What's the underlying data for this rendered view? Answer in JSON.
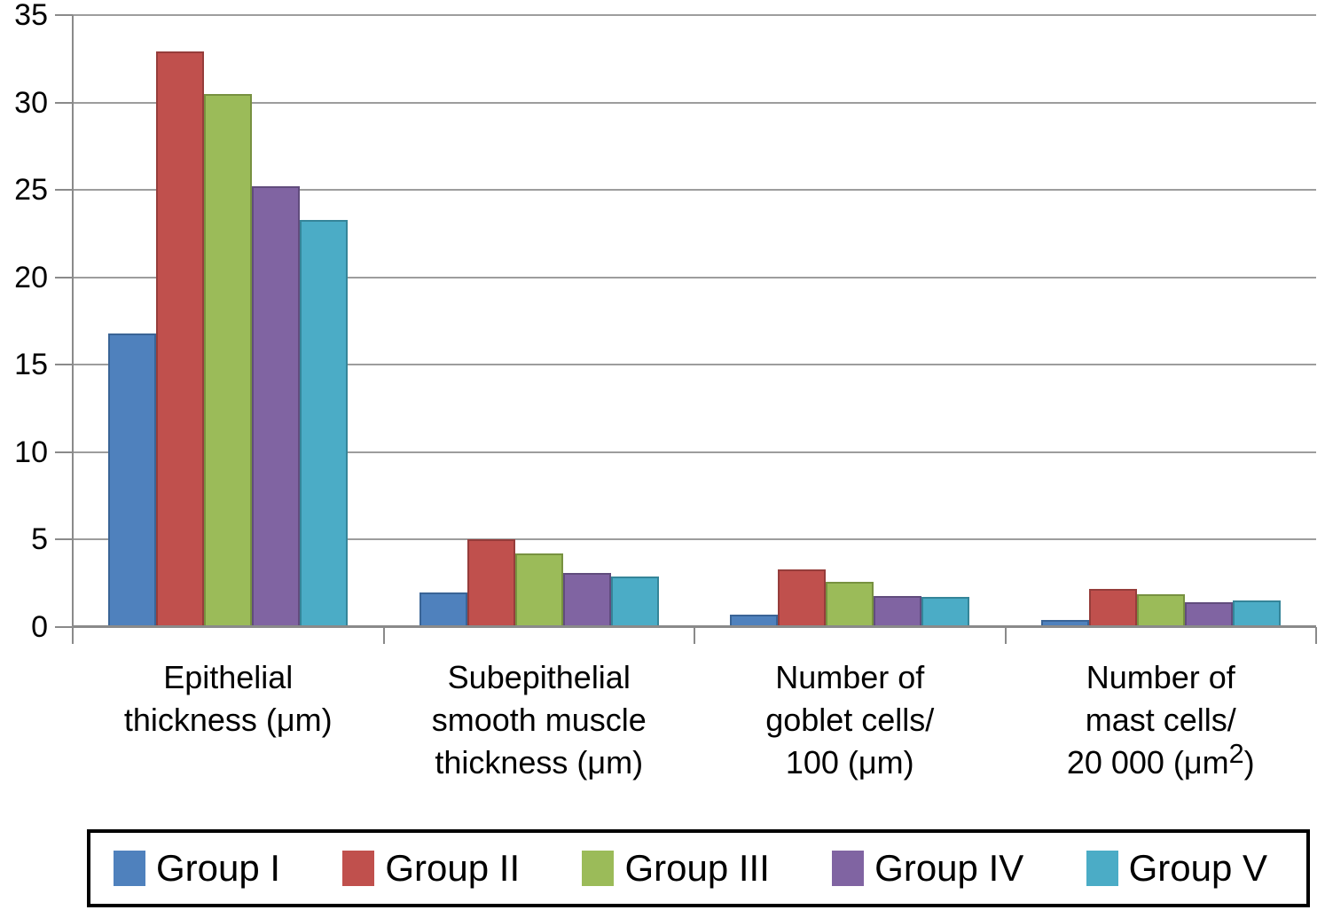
{
  "chart_data": {
    "type": "bar",
    "title": "",
    "xlabel": "",
    "ylabel": "",
    "ylim": [
      0,
      35
    ],
    "ytick_step": 5,
    "yticks": [
      0,
      5,
      10,
      15,
      20,
      25,
      30,
      35
    ],
    "grid": true,
    "legend_position": "bottom",
    "categories": [
      {
        "label": "Epithelial thickness (μm)",
        "lines": [
          "Epithelial",
          "thickness (μm)"
        ]
      },
      {
        "label": "Subepithelial smooth muscle thickness (μm)",
        "lines": [
          "Subepithelial",
          "smooth muscle",
          "thickness (μm)"
        ]
      },
      {
        "label": "Number of goblet cells/ 100 (μm)",
        "lines": [
          "Number of",
          "goblet cells/",
          "100 (μm)"
        ]
      },
      {
        "label": "Number of mast cells/ 20 000 (μm²)",
        "lines": [
          "Number of",
          "mast cells/",
          "20 000 (μm^2^)"
        ]
      }
    ],
    "series": [
      {
        "name": "Group I",
        "color": "#4F81BD",
        "border": "#3A6496",
        "values": [
          16.8,
          2.0,
          0.7,
          0.4
        ]
      },
      {
        "name": "Group II",
        "color": "#C0504D",
        "border": "#963D3B",
        "values": [
          32.9,
          5.0,
          3.3,
          2.2
        ]
      },
      {
        "name": "Group III",
        "color": "#9BBB59",
        "border": "#779140",
        "values": [
          30.5,
          4.2,
          2.6,
          1.9
        ]
      },
      {
        "name": "Group IV",
        "color": "#8064A2",
        "border": "#614C7D",
        "values": [
          25.2,
          3.1,
          1.8,
          1.4
        ]
      },
      {
        "name": "Group V",
        "color": "#4BACC6",
        "border": "#358599",
        "values": [
          23.3,
          2.9,
          1.7,
          1.5
        ]
      }
    ]
  },
  "colors": {
    "background": "#FFFFFF",
    "gridline": "#9D9D9D",
    "axis": "#8A8A8A",
    "text": "#000000",
    "legend_border": "#000000"
  }
}
